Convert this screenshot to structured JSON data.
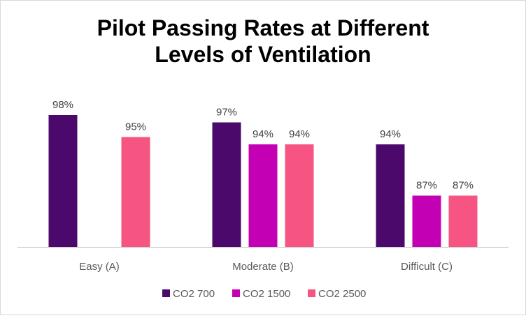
{
  "chart_data": {
    "type": "bar",
    "title": "Pilot Passing Rates at Different Levels of Ventilation",
    "title_lines": [
      "Pilot Passing Rates at Different",
      "Levels of Ventilation"
    ],
    "categories": [
      "Easy (A)",
      "Moderate (B)",
      "Difficult (C)"
    ],
    "series": [
      {
        "name": "CO2 700",
        "color": "#4b0a6b",
        "values": [
          98,
          97,
          94
        ]
      },
      {
        "name": "CO2 1500",
        "color": "#c400b4",
        "values": [
          null,
          94,
          87
        ]
      },
      {
        "name": "CO2 2500",
        "color": "#f65483",
        "values": [
          95,
          94,
          87
        ]
      }
    ],
    "value_labels": [
      [
        "98%",
        "97%",
        "94%"
      ],
      [
        "",
        "94%",
        "87%"
      ],
      [
        "95%",
        "94%",
        "87%"
      ]
    ],
    "ylim": [
      80,
      100
    ],
    "value_unit": "%",
    "grid": false,
    "legend_position": "bottom",
    "xlabel": "",
    "ylabel": ""
  }
}
